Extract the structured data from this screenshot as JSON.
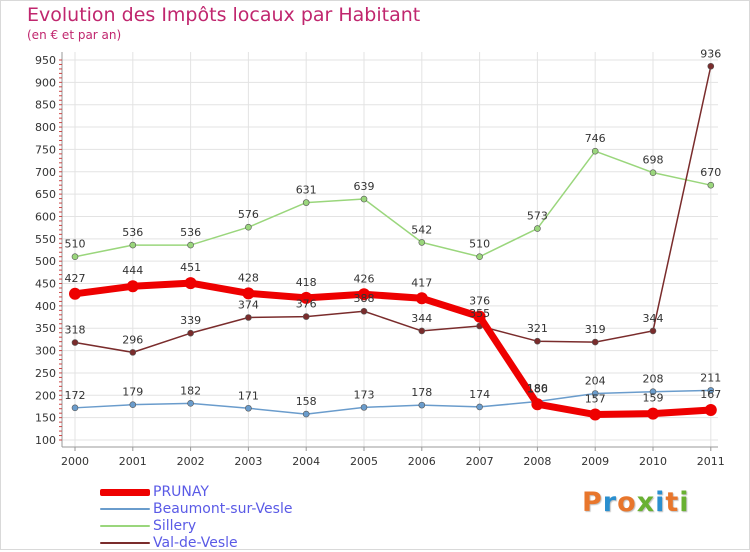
{
  "title": "Evolution des Impôts locaux par Habitant",
  "subtitle": "(en € et par an)",
  "colors": {
    "title": "#c0266e",
    "legend_text": "#5a5ae6",
    "grid": "#e3e3e3",
    "axis": "#999999"
  },
  "logo": {
    "text": "Proxiti",
    "letter_colors": [
      "#e8762c",
      "#2a8fcf",
      "#e8762c",
      "#69b132",
      "#2a8fcf",
      "#e8762c",
      "#69b132"
    ]
  },
  "chart_data": {
    "type": "line",
    "title": "Evolution des Impôts locaux par Habitant",
    "subtitle": "(en € et par an)",
    "xlabel": "",
    "ylabel": "",
    "x": [
      "2000",
      "2001",
      "2002",
      "2003",
      "2004",
      "2005",
      "2006",
      "2007",
      "2008",
      "2009",
      "2010",
      "2011"
    ],
    "ylim": [
      100,
      950
    ],
    "yticks": [
      100,
      150,
      200,
      250,
      300,
      350,
      400,
      450,
      500,
      550,
      600,
      650,
      700,
      750,
      800,
      850,
      900,
      950
    ],
    "grid": true,
    "legend_position": "bottom-left",
    "series": [
      {
        "name": "PRUNAY",
        "color": "#ee0000",
        "values": [
          427,
          444,
          451,
          428,
          418,
          426,
          417,
          376,
          180,
          157,
          159,
          167
        ],
        "labels": [
          "427",
          "444",
          "451",
          "428",
          "418",
          "426",
          "417",
          "376",
          "180",
          "157",
          "159",
          "167"
        ]
      },
      {
        "name": "Beaumont-sur-Vesle",
        "color": "#6a9ccc",
        "values": [
          172,
          179,
          182,
          171,
          158,
          173,
          178,
          174,
          186,
          204,
          208,
          211
        ],
        "labels": [
          "172",
          "179",
          "182",
          "171",
          "158",
          "173",
          "178",
          "174",
          "186",
          "204",
          "208",
          "211"
        ]
      },
      {
        "name": "Sillery",
        "color": "#9ad67c",
        "values": [
          510,
          536,
          536,
          576,
          631,
          639,
          542,
          510,
          573,
          746,
          698,
          670
        ],
        "labels": [
          "510",
          "536",
          "536",
          "576",
          "631",
          "639",
          "542",
          "510",
          "573",
          "746",
          "698",
          "670"
        ]
      },
      {
        "name": "Val-de-Vesle",
        "color": "#7a2c2c",
        "values": [
          318,
          296,
          339,
          374,
          376,
          388,
          344,
          355,
          321,
          319,
          344,
          936
        ],
        "labels": [
          "318",
          "296",
          "339",
          "374",
          "376",
          "388",
          "344",
          "355",
          "321",
          "319",
          "344",
          "936"
        ]
      }
    ]
  }
}
